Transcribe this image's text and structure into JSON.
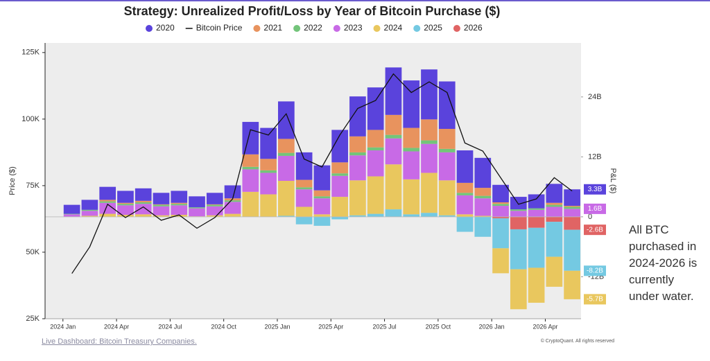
{
  "chart_data": {
    "type": "bar",
    "title": "Strategy: Unrealized Profit/Loss by Year of Bitcoin Purchase ($)",
    "ylabel": "Price ($)",
    "y2label": "P&L ($)",
    "x": [
      "2024-01",
      "2024-02",
      "2024-03",
      "2024-04",
      "2024-05",
      "2024-06",
      "2024-07",
      "2024-08",
      "2024-09",
      "2024-10",
      "2024-11",
      "2024-12",
      "2025-01",
      "2025-02",
      "2025-03",
      "2025-04",
      "2025-05",
      "2025-06",
      "2025-07",
      "2025-08",
      "2025-09",
      "2025-10",
      "2025-11",
      "2025-12",
      "2026-01",
      "2026-02",
      "2026-03",
      "2026-04",
      "2026-05"
    ],
    "xlim": [
      "2023-12",
      "2026-06"
    ],
    "xticks": [
      {
        "value": "2024-01",
        "label": "2024 Jan"
      },
      {
        "value": "2024-04",
        "label": "2024 Apr"
      },
      {
        "value": "2024-07",
        "label": "2024 Jul"
      },
      {
        "value": "2024-10",
        "label": "2024 Oct"
      },
      {
        "value": "2025-01",
        "label": "2025 Jan"
      },
      {
        "value": "2025-04",
        "label": "2025 Apr"
      },
      {
        "value": "2025-07",
        "label": "2025 Jul"
      },
      {
        "value": "2025-10",
        "label": "2025 Oct"
      },
      {
        "value": "2026-01",
        "label": "2026 Jan"
      },
      {
        "value": "2026-04",
        "label": "2026 Apr"
      }
    ],
    "ylim": [
      25000,
      128600
    ],
    "yticks": [
      {
        "value": 25000,
        "label": "25K"
      },
      {
        "value": 50000,
        "label": "50K"
      },
      {
        "value": 75000,
        "label": "75K"
      },
      {
        "value": 100000,
        "label": "100K"
      },
      {
        "value": 125000,
        "label": "125K"
      }
    ],
    "y2lim": [
      -20.4,
      34.8
    ],
    "y2ticks": [
      {
        "value": -12,
        "label": "-12B"
      },
      0,
      {
        "value": 12,
        "label": "12B"
      },
      {
        "value": 24,
        "label": "24B"
      }
    ],
    "grid": false,
    "legend": "top",
    "series": [
      {
        "name": "2020",
        "color": "#5a43dc",
        "axis": "y2",
        "values": [
          1.8,
          2.0,
          2.6,
          2.4,
          2.5,
          2.3,
          2.4,
          2.2,
          2.3,
          2.6,
          6.5,
          6.2,
          7.5,
          5.5,
          5.0,
          6.5,
          8.0,
          8.5,
          9.5,
          9.5,
          10.0,
          9.5,
          6.5,
          6.0,
          3.5,
          2.5,
          2.8,
          3.8,
          3.3
        ],
        "value_labels": [
          null,
          null,
          null,
          null,
          null,
          null,
          null,
          null,
          null,
          null,
          null,
          null,
          null,
          null,
          null,
          null,
          null,
          null,
          null,
          null,
          null,
          null,
          null,
          null,
          null,
          null,
          null,
          null,
          "3.3B"
        ]
      },
      {
        "name": "Bitcoin Price",
        "color": "#111111",
        "type": "line",
        "axis": "y",
        "values": [
          42000,
          52000,
          68000,
          63000,
          67000,
          62000,
          64000,
          59000,
          63000,
          70000,
          96000,
          94000,
          102000,
          85000,
          82000,
          94000,
          104000,
          107000,
          117000,
          110000,
          114000,
          110000,
          91000,
          88000,
          78000,
          68000,
          70000,
          78000,
          73000
        ]
      },
      {
        "name": "2021",
        "color": "#e8935e",
        "axis": "y2",
        "values": [
          0,
          0,
          0.3,
          0.2,
          0.3,
          0.1,
          0.2,
          0,
          0.1,
          0.4,
          2.5,
          2.3,
          2.8,
          1.5,
          1.2,
          2.2,
          3.2,
          3.5,
          4.0,
          4.0,
          4.2,
          4.0,
          2.0,
          1.6,
          0.3,
          0,
          0,
          0.4,
          0.2
        ]
      },
      {
        "name": "2022",
        "color": "#73c47a",
        "axis": "y2",
        "values": [
          0.1,
          0.2,
          0.3,
          0.3,
          0.3,
          0.3,
          0.3,
          0.2,
          0.3,
          0.3,
          0.5,
          0.5,
          0.6,
          0.4,
          0.4,
          0.5,
          0.6,
          0.6,
          0.7,
          0.7,
          0.7,
          0.7,
          0.5,
          0.5,
          0.4,
          0.3,
          0.3,
          0.4,
          0.4
        ]
      },
      {
        "name": "2023",
        "color": "#c86ae6",
        "axis": "y2",
        "values": [
          0.5,
          1.0,
          2.2,
          1.9,
          2.1,
          1.8,
          1.9,
          1.6,
          1.8,
          2.4,
          4.5,
          4.3,
          5.0,
          3.5,
          3.2,
          4.2,
          5.0,
          5.2,
          5.2,
          5.6,
          5.8,
          5.6,
          3.8,
          3.5,
          2.2,
          1.2,
          1.4,
          2.0,
          1.6
        ],
        "value_labels": [
          null,
          null,
          null,
          null,
          null,
          null,
          null,
          null,
          null,
          null,
          null,
          null,
          null,
          null,
          null,
          null,
          null,
          null,
          null,
          null,
          null,
          null,
          null,
          null,
          null,
          null,
          null,
          null,
          "1.6B"
        ]
      },
      {
        "name": "2024",
        "color": "#e9c75e",
        "axis": "y2",
        "values": [
          0,
          0.2,
          0.6,
          0.4,
          0.5,
          0.3,
          0.4,
          0.1,
          0.3,
          0.6,
          5,
          4.5,
          7,
          2,
          0.5,
          4,
          7,
          7.5,
          9,
          7,
          8,
          7,
          0.5,
          0.2,
          -5,
          -8,
          -7,
          -6,
          -5.7
        ],
        "value_labels": [
          null,
          null,
          null,
          null,
          null,
          null,
          null,
          null,
          null,
          null,
          null,
          null,
          null,
          null,
          null,
          null,
          null,
          null,
          null,
          null,
          null,
          null,
          null,
          null,
          null,
          null,
          null,
          null,
          "-5.7B"
        ]
      },
      {
        "name": "2025",
        "color": "#74c9e2",
        "axis": "y2",
        "values": [
          null,
          null,
          null,
          null,
          null,
          null,
          null,
          null,
          null,
          null,
          null,
          null,
          0.2,
          -1.5,
          -1.8,
          -0.5,
          0.3,
          0.6,
          1.5,
          0.5,
          0.8,
          0.3,
          -3,
          -4,
          -6,
          -8,
          -8,
          -7,
          -8.2
        ],
        "value_labels": [
          null,
          null,
          null,
          null,
          null,
          null,
          null,
          null,
          null,
          null,
          null,
          null,
          null,
          null,
          null,
          null,
          null,
          null,
          null,
          null,
          null,
          null,
          null,
          null,
          null,
          null,
          null,
          null,
          "-8.2B"
        ]
      },
      {
        "name": "2026",
        "color": "#e06464",
        "axis": "y2",
        "values": [
          null,
          null,
          null,
          null,
          null,
          null,
          null,
          null,
          null,
          null,
          null,
          null,
          null,
          null,
          null,
          null,
          null,
          null,
          null,
          null,
          null,
          null,
          null,
          null,
          -0.3,
          -2.5,
          -2.2,
          -1.0,
          -2.6
        ],
        "value_labels": [
          null,
          null,
          null,
          null,
          null,
          null,
          null,
          null,
          null,
          null,
          null,
          null,
          null,
          null,
          null,
          null,
          null,
          null,
          null,
          null,
          null,
          null,
          null,
          null,
          null,
          null,
          null,
          null,
          "-2.6B"
        ]
      }
    ],
    "annotation": "All BTC purchased in 2024-2026 is currently under water.",
    "footer_link": "Live Dashboard: Bitcoin Treasury Companies.",
    "credit": "© CryptoQuant. All rights reserved"
  }
}
